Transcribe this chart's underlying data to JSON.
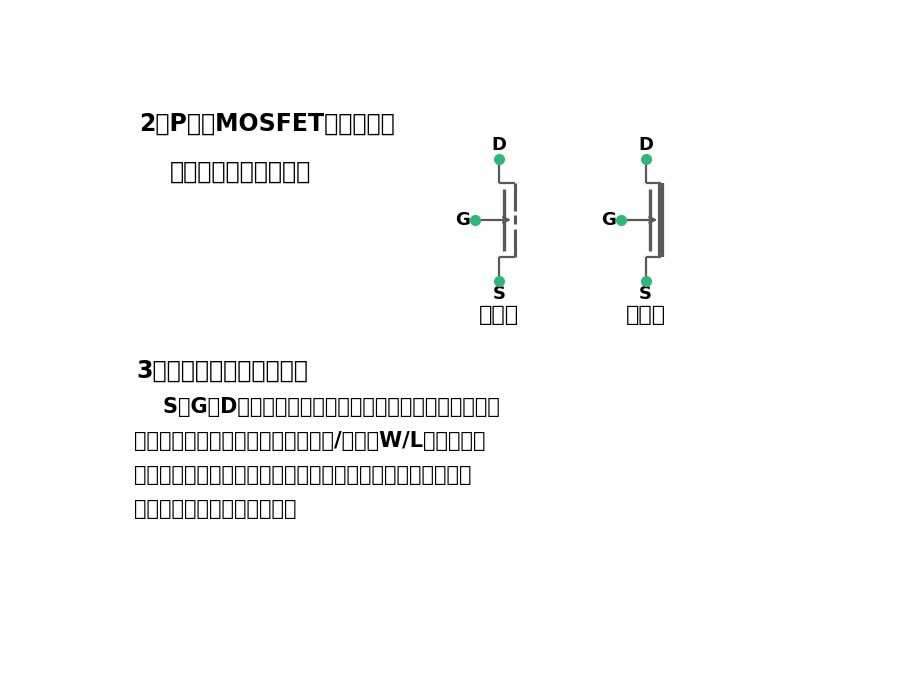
{
  "bg_color": "#ffffff",
  "text_color": "#000000",
  "dot_color": "#2db87a",
  "line_color": "#595959",
  "title1": "2．P沟道MOSFET：空穴导电",
  "subtitle1": "分类：增强型，耗尽型",
  "title2": "3．存在问题：平面型结构",
  "body_line1": "    S、G、D处于同一平面，电流横向流动，电流容量不可能",
  "body_line2": "太大；要获得大功率，可增大沟道宽/长比（W/L），但沟道",
  "body_line3": "长度受工艺限制，不能很小；增大管芯面积，但不经济，因此",
  "body_line4": "管子功率小，大功率难实现。",
  "label_zengqiang": "增强型",
  "label_haojin": "耗尽型"
}
